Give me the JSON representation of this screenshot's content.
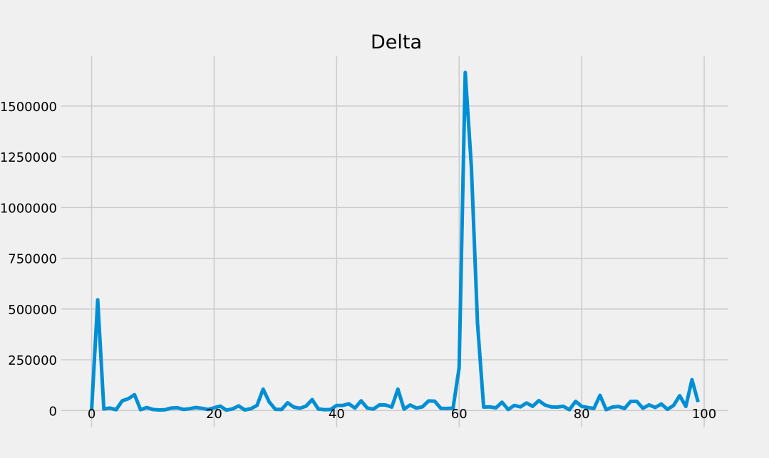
{
  "chart_data": {
    "type": "line",
    "title": "Delta",
    "xlabel": "",
    "ylabel": "",
    "xlim": [
      -4.95,
      103.95
    ],
    "ylim": [
      -83000,
      1745000
    ],
    "xticks": [
      0,
      20,
      40,
      60,
      80,
      100
    ],
    "yticks": [
      0,
      250000,
      500000,
      750000,
      1000000,
      1250000,
      1500000
    ],
    "grid": true,
    "legend": "none",
    "colors": {
      "background": "#f0f0f0",
      "grid": "#cbcbcb",
      "line": "#008fd5"
    },
    "series": [
      {
        "x": [
          0,
          1,
          2,
          3,
          4,
          5,
          6,
          7,
          8,
          9,
          10,
          11,
          12,
          13,
          14,
          15,
          16,
          17,
          18,
          19,
          20,
          21,
          22,
          23,
          24,
          25,
          26,
          27,
          28,
          29,
          30,
          31,
          32,
          33,
          34,
          35,
          36,
          37,
          38,
          39,
          40,
          41,
          42,
          43,
          44,
          45,
          46,
          47,
          48,
          49,
          50,
          51,
          52,
          53,
          54,
          55,
          56,
          57,
          58,
          59,
          60,
          61,
          62,
          63,
          64,
          65,
          66,
          67,
          68,
          69,
          70,
          71,
          72,
          73,
          74,
          75,
          76,
          77,
          78,
          79,
          80,
          81,
          82,
          83,
          84,
          85,
          86,
          87,
          88,
          89,
          90,
          91,
          92,
          93,
          94,
          95,
          96,
          97,
          98,
          99
        ],
        "values": [
          0,
          545000,
          8000,
          12000,
          4000,
          48000,
          58000,
          78000,
          4000,
          15000,
          5000,
          3000,
          4000,
          12000,
          14000,
          5000,
          9000,
          15000,
          11000,
          5000,
          13000,
          22000,
          2000,
          8000,
          23000,
          3000,
          9000,
          25000,
          105000,
          42000,
          6000,
          5000,
          38000,
          17000,
          11000,
          22000,
          54000,
          8000,
          4000,
          5000,
          25000,
          25000,
          33000,
          12000,
          48000,
          12000,
          7000,
          28000,
          27000,
          17000,
          105000,
          7000,
          27000,
          12000,
          18000,
          47000,
          46000,
          11000,
          10000,
          12000,
          210000,
          1665000,
          1200000,
          430000,
          17000,
          18000,
          13000,
          41000,
          5000,
          25000,
          18000,
          37000,
          21000,
          49000,
          27000,
          18000,
          17000,
          21000,
          4000,
          45000,
          21000,
          15000,
          10000,
          75000,
          4000,
          17000,
          20000,
          10000,
          45000,
          45000,
          11000,
          28000,
          15000,
          32000,
          6000,
          25000,
          73000,
          20000,
          152000,
          42000
        ]
      }
    ]
  }
}
